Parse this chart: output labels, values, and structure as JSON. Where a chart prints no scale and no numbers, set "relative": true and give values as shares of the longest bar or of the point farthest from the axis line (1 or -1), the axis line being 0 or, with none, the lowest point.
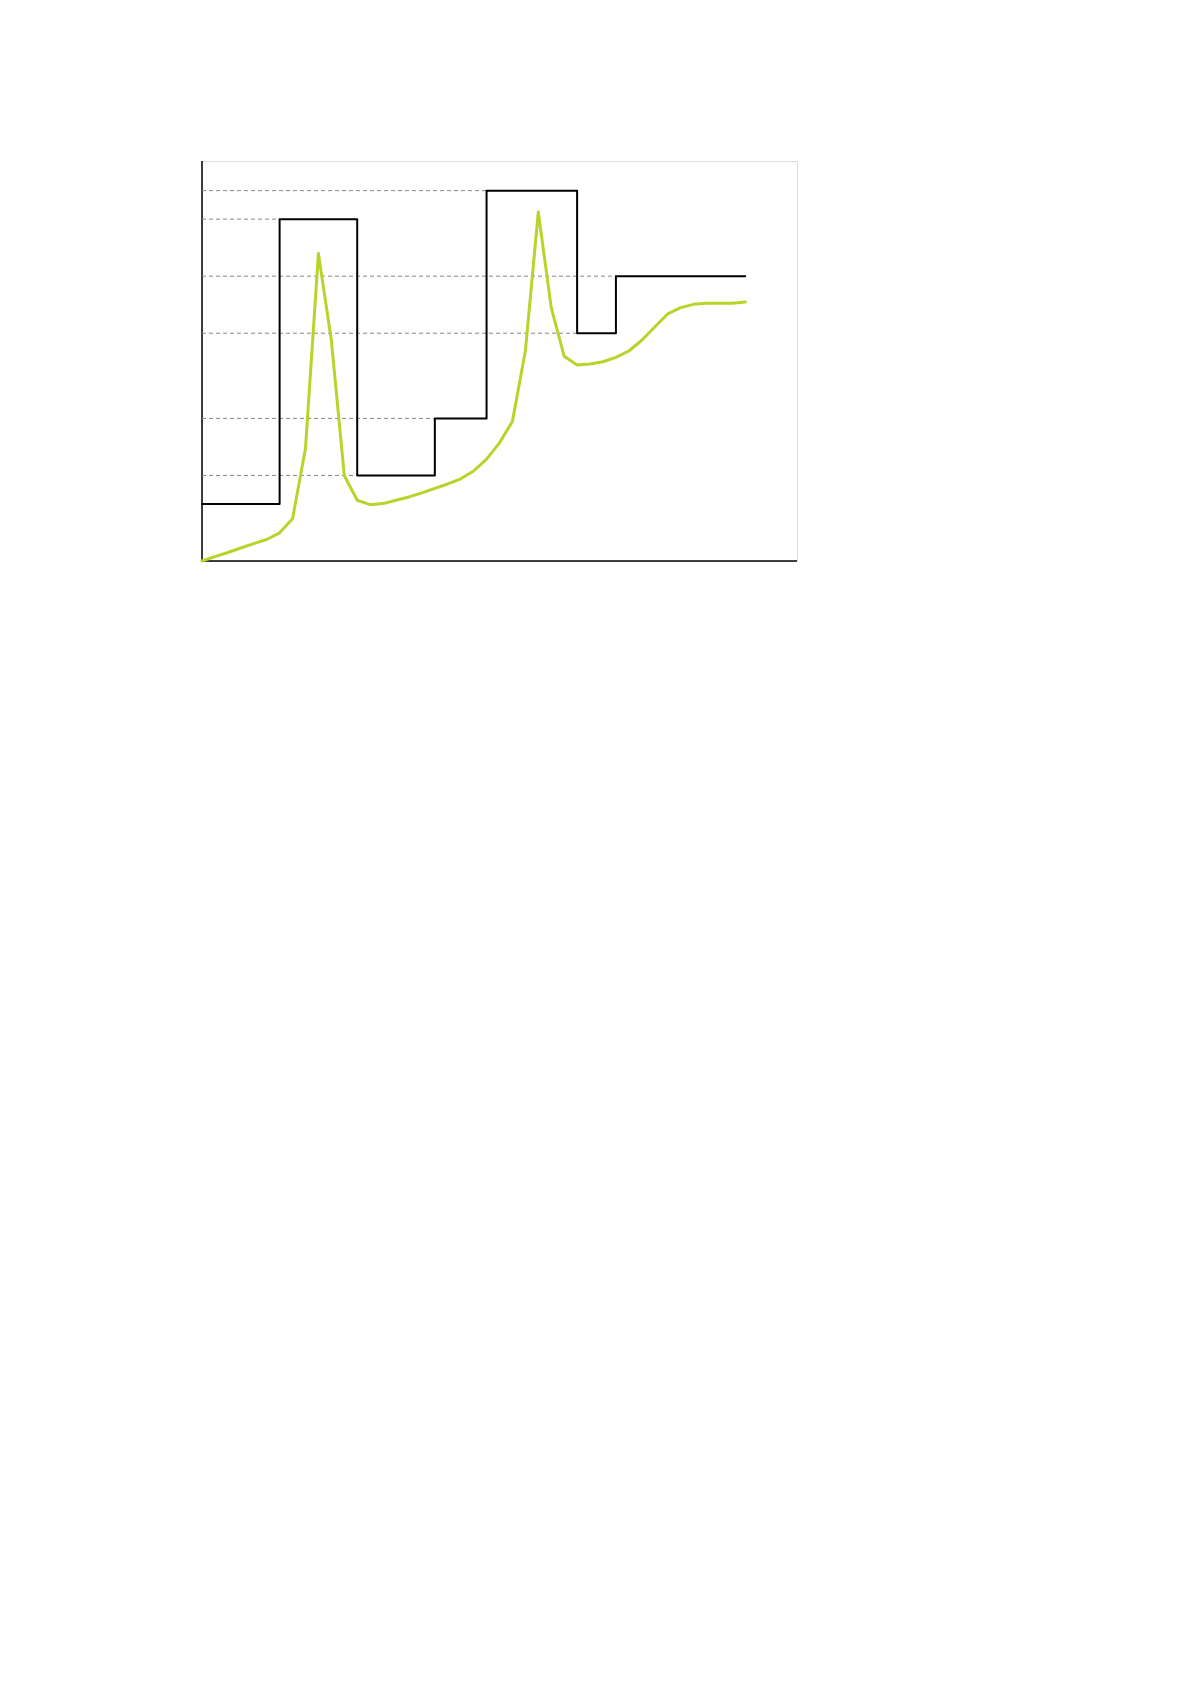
{
  "chart_data": {
    "type": "line",
    "relative": true,
    "categories": [
      null,
      null,
      null,
      null,
      null,
      null,
      null,
      null,
      null,
      null,
      null,
      null,
      null,
      null,
      null,
      null,
      null,
      null,
      null,
      null,
      null,
      null,
      null,
      null,
      null,
      null,
      null,
      null,
      null,
      null,
      null,
      null,
      null,
      null,
      null,
      null,
      null,
      null,
      null,
      null,
      null,
      null,
      null
    ],
    "series": [
      {
        "type": "step",
        "color": "#000000",
        "values": [
          0.154,
          0.154,
          0.154,
          0.154,
          0.154,
          0.154,
          0.923,
          0.923,
          0.923,
          0.923,
          0.923,
          0.923,
          0.231,
          0.231,
          0.231,
          0.231,
          0.231,
          0.231,
          0.385,
          0.385,
          0.385,
          0.385,
          1,
          1,
          1,
          1,
          1,
          1,
          1,
          0.615,
          0.615,
          0.615,
          0.769,
          0.769,
          0.769,
          0.769,
          0.769,
          0.769,
          0.769,
          0.769,
          0.769,
          0.769,
          0.769
        ]
      },
      {
        "color": "#b8d42a",
        "values": [
          0,
          0.012,
          0.023,
          0.035,
          0.047,
          0.058,
          0.076,
          0.114,
          0.304,
          0.83,
          0.596,
          0.231,
          0.164,
          0.152,
          0.155,
          0.164,
          0.173,
          0.184,
          0.196,
          0.208,
          0.222,
          0.243,
          0.275,
          0.319,
          0.377,
          0.567,
          0.942,
          0.684,
          0.553,
          0.529,
          0.532,
          0.538,
          0.55,
          0.567,
          0.596,
          0.632,
          0.667,
          0.684,
          0.693,
          0.696,
          0.696,
          0.696,
          0.699
        ]
      }
    ],
    "ref_lines": [
      {
        "axis": "y",
        "value": 1,
        "line_style": "dashed",
        "color": "#888888"
      },
      {
        "axis": "y",
        "value": 0.923,
        "line_style": "dashed",
        "color": "#888888"
      },
      {
        "axis": "y",
        "value": 0.769,
        "line_style": "dashed",
        "color": "#888888"
      },
      {
        "axis": "y",
        "value": 0.615,
        "line_style": "dashed",
        "color": "#888888"
      },
      {
        "axis": "y",
        "value": 0.385,
        "line_style": "dashed",
        "color": "#888888"
      },
      {
        "axis": "y",
        "value": 0.231,
        "line_style": "dashed",
        "color": "#888888"
      }
    ]
  }
}
